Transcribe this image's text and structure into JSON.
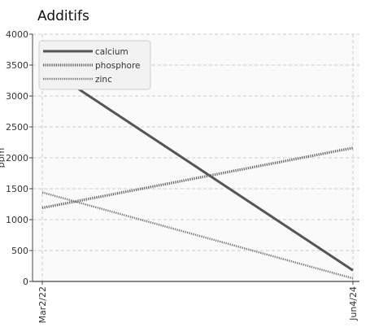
{
  "chart_data": {
    "type": "line",
    "title": "Additifs",
    "ylabel": "ppm",
    "x": [
      "Mar2/22",
      "Jun4/24"
    ],
    "ylim": [
      0,
      4000
    ],
    "yticks": [
      0,
      500,
      1000,
      1500,
      2000,
      2500,
      3000,
      3500,
      4000
    ],
    "grid": true,
    "legend_position": "top-left",
    "series": [
      {
        "name": "calcium",
        "values": [
          3500,
          180
        ],
        "color": "#555555",
        "style": "solid"
      },
      {
        "name": "phosphore",
        "values": [
          1190,
          2160
        ],
        "color": "#666666",
        "style": "dotted"
      },
      {
        "name": "zinc",
        "values": [
          1440,
          50
        ],
        "color": "#777777",
        "style": "dotted"
      }
    ]
  }
}
